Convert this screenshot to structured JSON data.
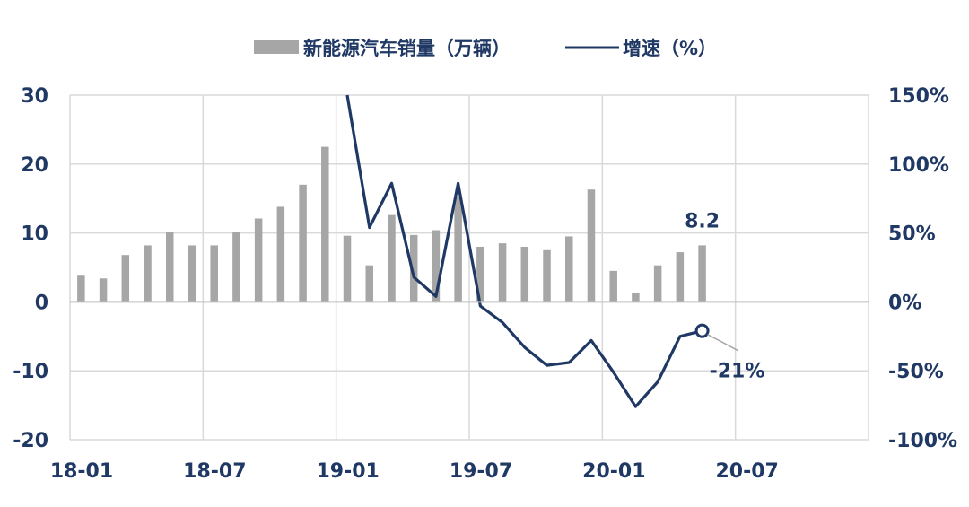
{
  "chart_data": {
    "type": "bar+line",
    "legend": {
      "position": "top-center",
      "bar_label": "新能源汽车销量（万辆）",
      "line_label": "增速（%）"
    },
    "colors": {
      "bar": "#a6a6a6",
      "line": "#1f3864",
      "grid": "#d9d9d9",
      "text": "#1f3864",
      "callout": "#a6a6a6"
    },
    "grid": true,
    "x": {
      "start": "2018-01",
      "months": 36,
      "tick_labels": [
        "18-01",
        "18-07",
        "19-01",
        "19-07",
        "20-01",
        "20-07"
      ]
    },
    "y_left": {
      "min": -20,
      "max": 30,
      "step": 10,
      "tick_labels": [
        "-20",
        "-10",
        "0",
        "10",
        "20",
        "30"
      ]
    },
    "y_right": {
      "min": -100,
      "max": 150,
      "step": 50,
      "tick_labels": [
        "-100%",
        "-50%",
        "0%",
        "50%",
        "100%",
        "150%"
      ]
    },
    "series": [
      {
        "name": "新能源汽车销量（万辆）",
        "kind": "bar",
        "axis": "left",
        "x": [
          "2018-01",
          "2018-02",
          "2018-03",
          "2018-04",
          "2018-05",
          "2018-06",
          "2018-07",
          "2018-08",
          "2018-09",
          "2018-10",
          "2018-11",
          "2018-12",
          "2019-01",
          "2019-02",
          "2019-03",
          "2019-04",
          "2019-05",
          "2019-06",
          "2019-07",
          "2019-08",
          "2019-09",
          "2019-10",
          "2019-11",
          "2019-12",
          "2020-01",
          "2020-02",
          "2020-03",
          "2020-04",
          "2020-05"
        ],
        "values": [
          3.8,
          3.4,
          6.8,
          8.2,
          10.2,
          8.2,
          8.2,
          10.1,
          12.1,
          13.8,
          17.0,
          22.5,
          9.6,
          5.3,
          12.6,
          9.7,
          10.4,
          15.2,
          8.0,
          8.5,
          8.0,
          7.5,
          9.5,
          16.3,
          4.5,
          1.3,
          5.3,
          7.2,
          8.2
        ]
      },
      {
        "name": "增速（%）",
        "kind": "line",
        "axis": "right",
        "x": [
          "2019-01",
          "2019-02",
          "2019-03",
          "2019-04",
          "2019-05",
          "2019-06",
          "2019-07",
          "2019-08",
          "2019-09",
          "2019-10",
          "2019-11",
          "2019-12",
          "2020-01",
          "2020-02",
          "2020-03",
          "2020-04",
          "2020-05"
        ],
        "values": [
          150,
          54,
          86,
          18,
          4,
          86,
          -3,
          -15,
          -33,
          -46,
          -44,
          -28,
          -51,
          -76,
          -58,
          -25,
          -21
        ]
      }
    ],
    "annotations": [
      {
        "x": "2020-05",
        "series": "bar",
        "text": "8.2"
      },
      {
        "x": "2020-05",
        "series": "line",
        "text": "-21%"
      }
    ]
  }
}
